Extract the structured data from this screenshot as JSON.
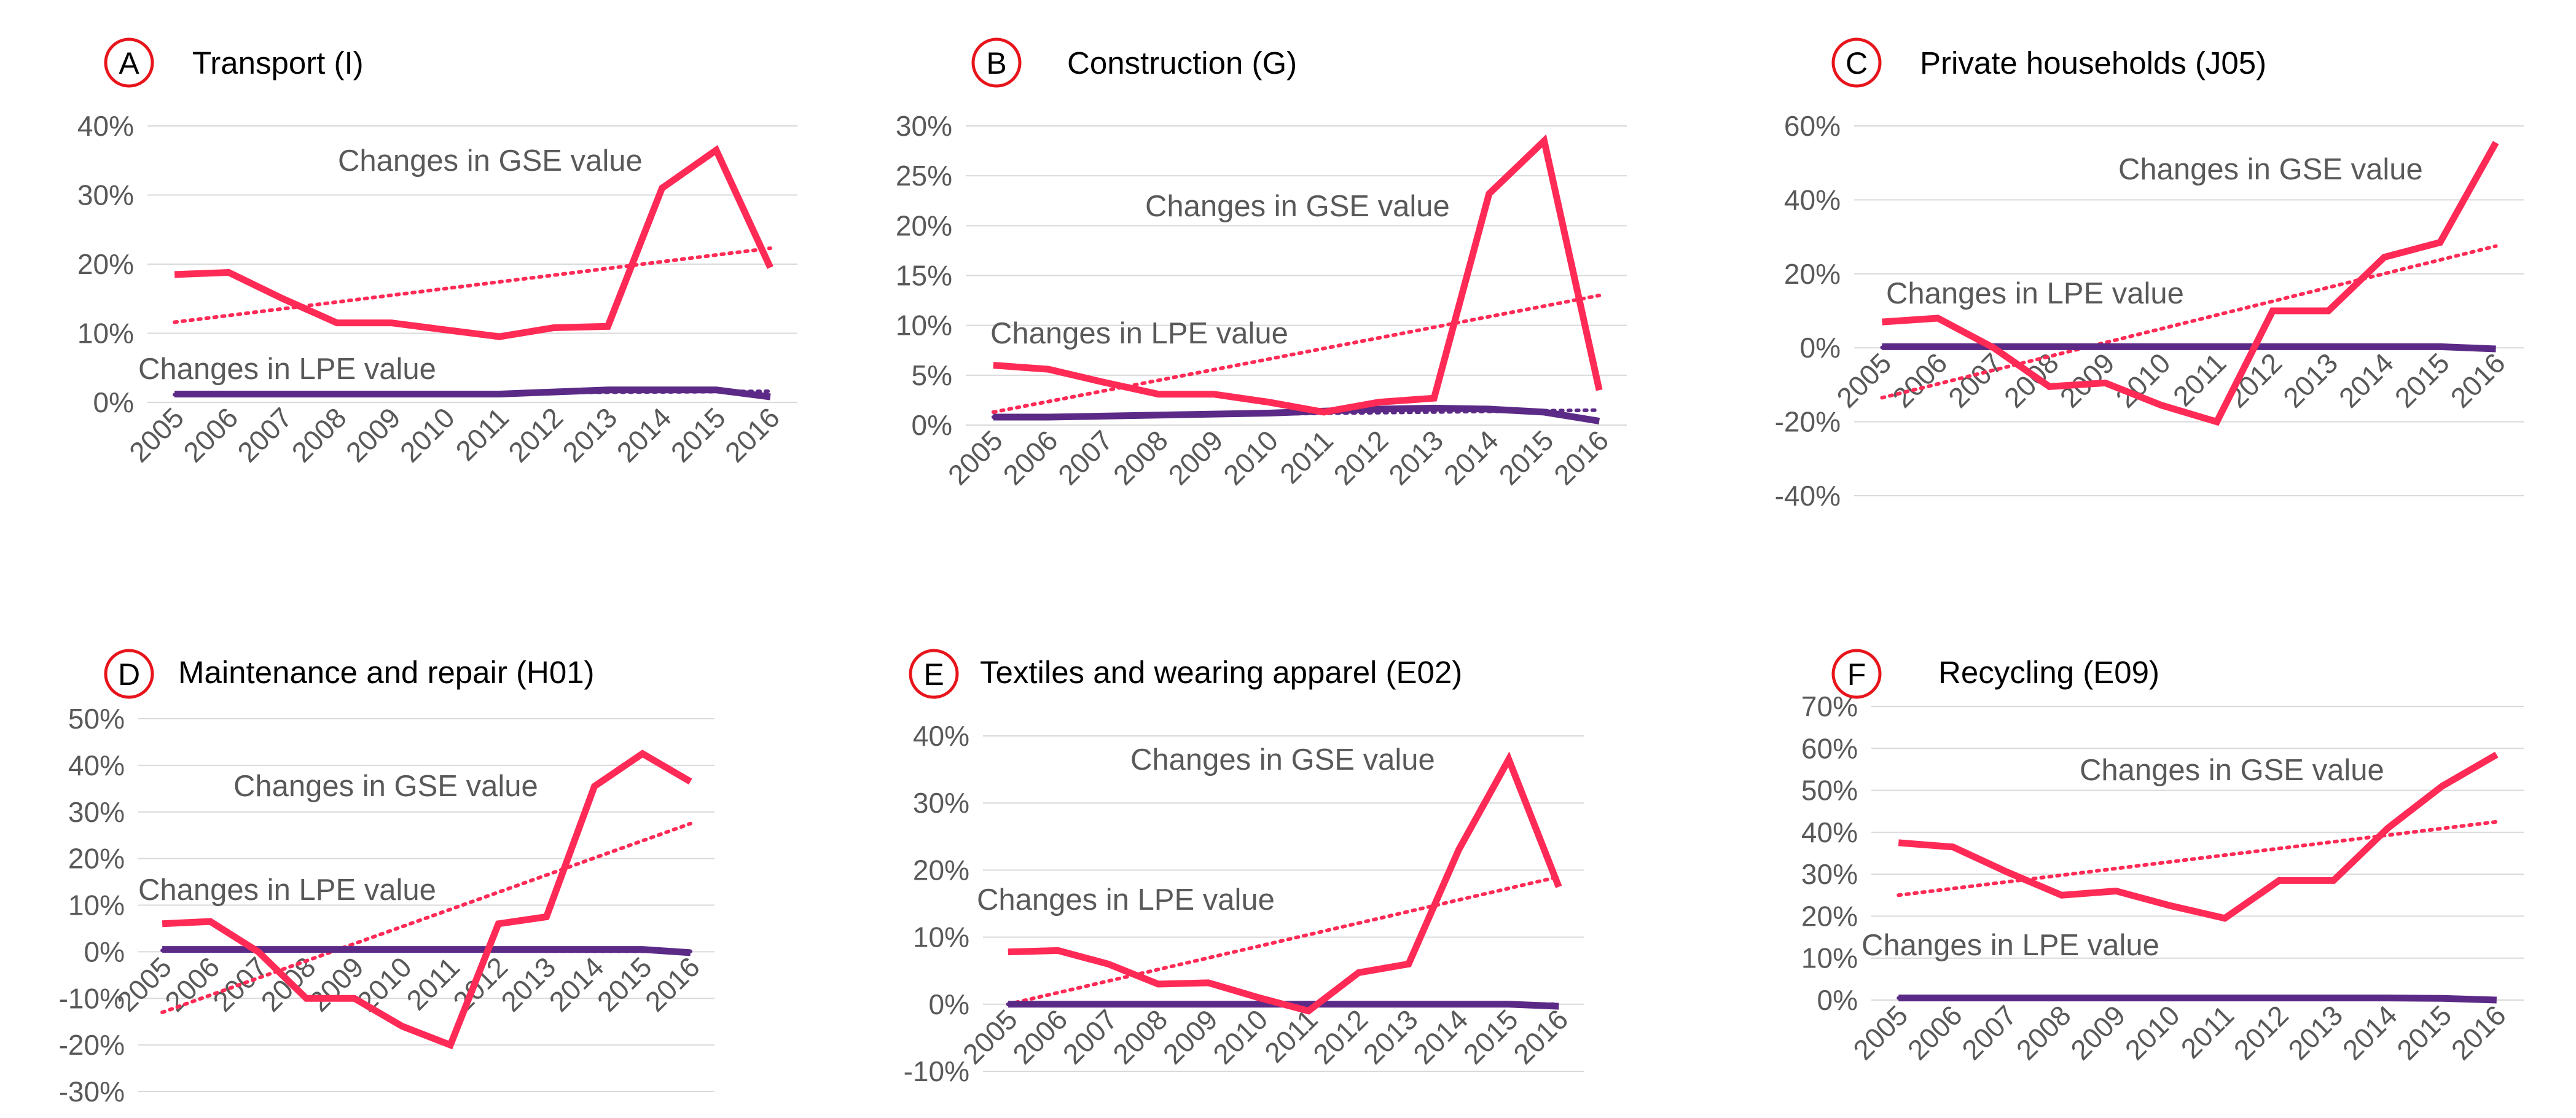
{
  "chart_data": [
    {
      "type": "line",
      "panel_label": "A",
      "title": "Transport (I)",
      "categories": [
        "2005",
        "2006",
        "2007",
        "2008",
        "2009",
        "2010",
        "2011",
        "2012",
        "2013",
        "2014",
        "2015",
        "2016"
      ],
      "ylim": [
        0,
        40
      ],
      "yticks": [
        "0%",
        "10%",
        "20%",
        "30%",
        "40%"
      ],
      "tick_values": [
        0,
        10,
        20,
        30,
        40
      ],
      "series": [
        {
          "name": "Changes in GSE value",
          "color": "#ff2a55",
          "values": [
            18.5,
            18.8,
            15,
            11.5,
            11.5,
            10.5,
            9.5,
            10.8,
            11,
            31,
            36.5,
            19.5
          ],
          "trend": [
            11.6,
            22.3
          ]
        },
        {
          "name": "Changes in LPE value",
          "color": "#5b2a86",
          "values": [
            1.2,
            1.2,
            1.2,
            1.2,
            1.2,
            1.2,
            1.2,
            1.5,
            1.8,
            1.8,
            1.8,
            0.8
          ],
          "trend": [
            1.1,
            1.6
          ]
        }
      ],
      "annotations": [
        "Changes in GSE value",
        "Changes in LPE value"
      ]
    },
    {
      "type": "line",
      "panel_label": "B",
      "title": "Construction (G)",
      "categories": [
        "2005",
        "2006",
        "2007",
        "2008",
        "2009",
        "2010",
        "2011",
        "2012",
        "2013",
        "2014",
        "2015",
        "2016"
      ],
      "ylim": [
        0,
        30
      ],
      "yticks": [
        "0%",
        "5%",
        "10%",
        "15%",
        "20%",
        "25%",
        "30%"
      ],
      "tick_values": [
        0,
        5,
        10,
        15,
        20,
        25,
        30
      ],
      "series": [
        {
          "name": "Changes in GSE value",
          "color": "#ff2a55",
          "values": [
            6,
            5.6,
            4.3,
            3.1,
            3.1,
            2.3,
            1.3,
            2.3,
            2.7,
            23.2,
            28.5,
            3.5
          ],
          "trend": [
            1.3,
            13.0
          ]
        },
        {
          "name": "Changes in LPE value",
          "color": "#5b2a86",
          "values": [
            0.8,
            0.8,
            0.9,
            1,
            1.1,
            1.2,
            1.4,
            1.6,
            1.7,
            1.6,
            1.3,
            0.4
          ],
          "trend": [
            0.8,
            1.5
          ]
        }
      ],
      "annotations": [
        "Changes in GSE value",
        "Changes in LPE value"
      ]
    },
    {
      "type": "line",
      "panel_label": "C",
      "title": "Private households (J05)",
      "categories": [
        "2005",
        "2006",
        "2007",
        "2008",
        "2009",
        "2010",
        "2011",
        "2012",
        "2013",
        "2014",
        "2015",
        "2016"
      ],
      "ylim": [
        -40,
        60
      ],
      "yticks": [
        "-40%",
        "-20%",
        "0%",
        "20%",
        "40%",
        "60%"
      ],
      "tick_values": [
        -40,
        -20,
        0,
        20,
        40,
        60
      ],
      "series": [
        {
          "name": "Changes in GSE value",
          "color": "#ff2a55",
          "values": [
            7,
            8,
            0,
            -10.5,
            -9.5,
            -15.5,
            -20,
            10,
            10,
            24.5,
            28.5,
            55.5
          ],
          "trend": [
            -13.5,
            27.5
          ]
        },
        {
          "name": "Changes in LPE value",
          "color": "#5b2a86",
          "values": [
            0.3,
            0.3,
            0.3,
            0.3,
            0.3,
            0.3,
            0.3,
            0.3,
            0.3,
            0.3,
            0.3,
            -0.3
          ],
          "trend": [
            0.1,
            0.1
          ]
        }
      ],
      "annotations": [
        "Changes in GSE value",
        "Changes in LPE value"
      ]
    },
    {
      "type": "line",
      "panel_label": "D",
      "title": "Maintenance and repair (H01)",
      "categories": [
        "2005",
        "2006",
        "2007",
        "2008",
        "2009",
        "2010",
        "2011",
        "2012",
        "2013",
        "2014",
        "2015",
        "2016"
      ],
      "ylim": [
        -30,
        50
      ],
      "yticks": [
        "-30%",
        "-20%",
        "-10%",
        "0%",
        "10%",
        "20%",
        "30%",
        "40%",
        "50%"
      ],
      "tick_values": [
        -30,
        -20,
        -10,
        0,
        10,
        20,
        30,
        40,
        50
      ],
      "series": [
        {
          "name": "Changes in GSE value",
          "color": "#ff2a55",
          "values": [
            6,
            6.5,
            0,
            -10,
            -10,
            -16,
            -20,
            6,
            7.5,
            35.5,
            42.5,
            36.5
          ],
          "trend": [
            -13,
            27.5
          ]
        },
        {
          "name": "Changes in LPE value",
          "color": "#5b2a86",
          "values": [
            0.5,
            0.5,
            0.5,
            0.5,
            0.5,
            0.5,
            0.5,
            0.5,
            0.5,
            0.5,
            0.5,
            -0.2
          ],
          "trend": [
            0.3,
            0.1
          ]
        }
      ],
      "annotations": [
        "Changes in GSE value",
        "Changes in LPE value"
      ]
    },
    {
      "type": "line",
      "panel_label": "E",
      "title": "Textiles and wearing apparel (E02)",
      "categories": [
        "2005",
        "2006",
        "2007",
        "2008",
        "2009",
        "2010",
        "2011",
        "2012",
        "2013",
        "2014",
        "2015",
        "2016"
      ],
      "ylim": [
        -10,
        40
      ],
      "yticks": [
        "-10%",
        "0%",
        "10%",
        "20%",
        "30%",
        "40%"
      ],
      "tick_values": [
        -10,
        0,
        10,
        20,
        30,
        40
      ],
      "series": [
        {
          "name": "Changes in GSE value",
          "color": "#ff2a55",
          "values": [
            7.8,
            8,
            6,
            3,
            3.2,
            1,
            -1,
            4.7,
            6,
            23,
            36.5,
            17.5
          ],
          "trend": [
            0,
            19
          ]
        },
        {
          "name": "Changes in LPE value",
          "color": "#5b2a86",
          "values": [
            0,
            0,
            0,
            0,
            0,
            0,
            0,
            0,
            0,
            0,
            0,
            -0.3
          ],
          "trend": [
            0,
            0
          ]
        }
      ],
      "annotations": [
        "Changes in GSE value",
        "Changes in LPE value"
      ]
    },
    {
      "type": "line",
      "panel_label": "F",
      "title": "Recycling (E09)",
      "categories": [
        "2005",
        "2006",
        "2007",
        "2008",
        "2009",
        "2010",
        "2011",
        "2012",
        "2013",
        "2014",
        "2015",
        "2016"
      ],
      "ylim": [
        0,
        70
      ],
      "yticks": [
        "0%",
        "10%",
        "20%",
        "30%",
        "40%",
        "50%",
        "60%",
        "70%"
      ],
      "tick_values": [
        0,
        10,
        20,
        30,
        40,
        50,
        60,
        70
      ],
      "series": [
        {
          "name": "Changes in GSE value",
          "color": "#ff2a55",
          "values": [
            37.5,
            36.5,
            30.5,
            25,
            26,
            22.5,
            19.5,
            28.5,
            28.5,
            41,
            51,
            58.5
          ],
          "trend": [
            25,
            42.5
          ]
        },
        {
          "name": "Changes in LPE value",
          "color": "#5b2a86",
          "values": [
            0.5,
            0.5,
            0.5,
            0.5,
            0.5,
            0.5,
            0.5,
            0.5,
            0.5,
            0.5,
            0.4,
            0
          ],
          "trend": [
            0.5,
            0.3
          ]
        }
      ],
      "annotations": [
        "Changes in GSE value",
        "Changes in LPE value"
      ]
    }
  ],
  "style": {
    "badge_color": "#e8141b",
    "grid_color": "#d9d9d9",
    "tick_color": "#595959",
    "annotation_color": "#595959"
  }
}
